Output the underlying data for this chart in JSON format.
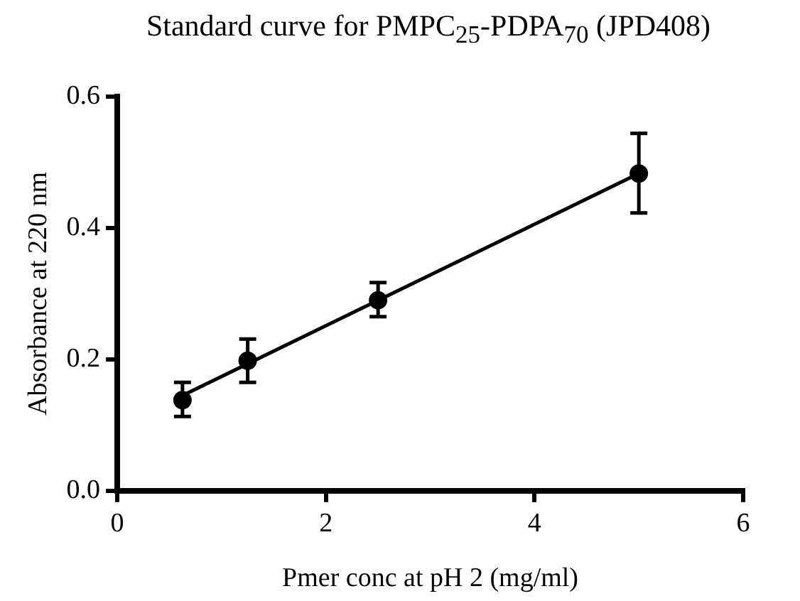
{
  "chart_data": {
    "type": "scatter",
    "title": "Standard curve for PMPC$_{25}$-PDPA$_{70}$ (JPD408)",
    "xlabel": "Pmer conc at pH 2 (mg/ml)",
    "ylabel": "Absorbance at 220 nm",
    "xlim": [
      0,
      6
    ],
    "xticks": [
      0,
      2,
      4,
      6
    ],
    "ylim": [
      0,
      0.6
    ],
    "yticks": [
      {
        "value": 0,
        "label": "0.0"
      },
      0.2,
      0.4,
      0.6
    ],
    "grid": false,
    "legend": false,
    "series": [
      {
        "color": "#000000",
        "marker": "circle",
        "x": [
          0.625,
          1.25,
          2.5,
          5
        ],
        "values": [
          0.138,
          0.198,
          0.29,
          0.483
        ],
        "errors": [
          [
            0.113,
            0.165
          ],
          [
            0.165,
            0.231
          ],
          [
            0.265,
            0.317
          ],
          [
            0.423,
            0.544
          ]
        ]
      },
      {
        "type": "line",
        "color": "#000000",
        "x": [
          0.625,
          5
        ],
        "values": [
          0.145,
          0.483
        ],
        "line_style": "solid"
      }
    ]
  }
}
